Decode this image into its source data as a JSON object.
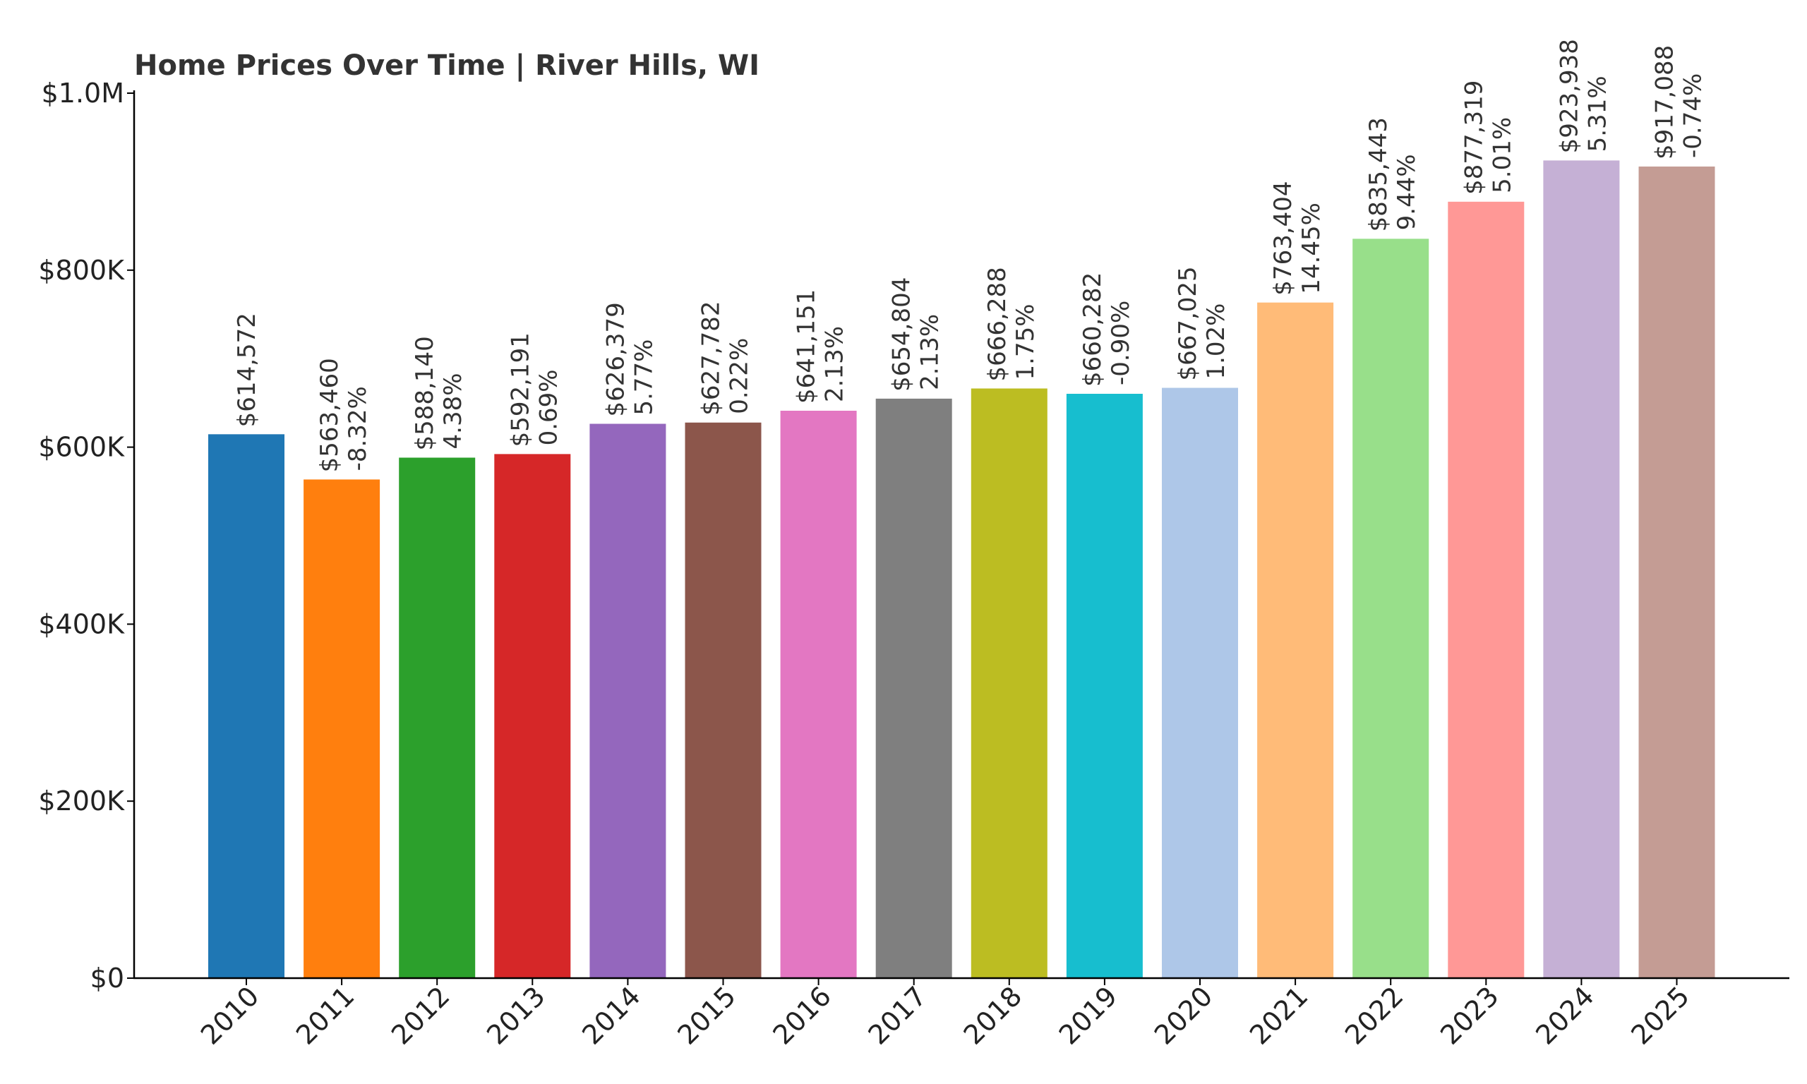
{
  "chart_data": {
    "type": "bar",
    "title": "Home Prices Over Time | River Hills, WI",
    "xlabel": "",
    "ylabel": "",
    "ylim": [
      0,
      1000000
    ],
    "grid": false,
    "legend": "none",
    "yticks": [
      {
        "value": 0,
        "label": "$0"
      },
      {
        "value": 200000,
        "label": "$200K"
      },
      {
        "value": 400000,
        "label": "$400K"
      },
      {
        "value": 600000,
        "label": "$600K"
      },
      {
        "value": 800000,
        "label": "$800K"
      },
      {
        "value": 1000000,
        "label": "$1.0M"
      }
    ],
    "categories": [
      "2010",
      "2011",
      "2012",
      "2013",
      "2014",
      "2015",
      "2016",
      "2017",
      "2018",
      "2019",
      "2020",
      "2021",
      "2022",
      "2023",
      "2024",
      "2025"
    ],
    "values": [
      614572,
      563460,
      588140,
      592191,
      626379,
      627782,
      641151,
      654804,
      666288,
      660282,
      667025,
      763404,
      835443,
      877319,
      923938,
      917088
    ],
    "value_labels": [
      "$614,572",
      "$563,460",
      "$588,140",
      "$592,191",
      "$626,379",
      "$627,782",
      "$641,151",
      "$654,804",
      "$666,288",
      "$660,282",
      "$667,025",
      "$763,404",
      "$835,443",
      "$877,319",
      "$923,938",
      "$917,088"
    ],
    "change_labels": [
      "",
      "-8.32%",
      "4.38%",
      "0.69%",
      "5.77%",
      "0.22%",
      "2.13%",
      "2.13%",
      "1.75%",
      "-0.90%",
      "1.02%",
      "14.45%",
      "9.44%",
      "5.01%",
      "5.31%",
      "-0.74%"
    ],
    "colors": [
      "#1f77b4",
      "#ff7f0e",
      "#2ca02c",
      "#d62728",
      "#9467bd",
      "#8c564b",
      "#e377c2",
      "#7f7f7f",
      "#bcbd22",
      "#17becf",
      "#aec7e8",
      "#ffbb78",
      "#98df8a",
      "#ff9896",
      "#c5b0d5",
      "#c49c94"
    ]
  }
}
